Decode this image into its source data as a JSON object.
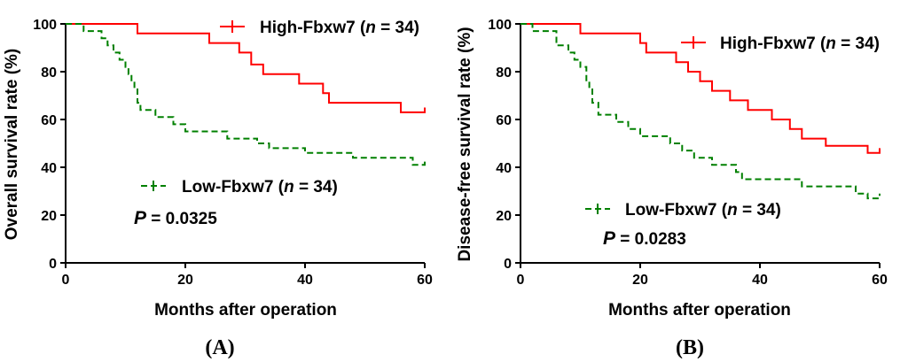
{
  "chart_data": [
    {
      "type": "line",
      "panel": "A",
      "panel_label": "(A)",
      "xlabel": "Months after operation",
      "ylabel": "Overall survival rate (%)",
      "xlim": [
        0,
        60
      ],
      "ylim": [
        0,
        100
      ],
      "xticks": [
        0,
        20,
        40,
        60
      ],
      "yticks": [
        0,
        20,
        40,
        60,
        80,
        100
      ],
      "series": [
        {
          "name": "High-Fbxw7",
          "n_label": "n",
          "n_value": "= 34)",
          "color": "#ff0000",
          "style": "solid",
          "points": [
            [
              0,
              100
            ],
            [
              12,
              100
            ],
            [
              12,
              96
            ],
            [
              24,
              96
            ],
            [
              24,
              92
            ],
            [
              29,
              92
            ],
            [
              29,
              88
            ],
            [
              31,
              88
            ],
            [
              31,
              83
            ],
            [
              33,
              83
            ],
            [
              33,
              79
            ],
            [
              39,
              79
            ],
            [
              39,
              75
            ],
            [
              43,
              75
            ],
            [
              43,
              71
            ],
            [
              44,
              71
            ],
            [
              44,
              67
            ],
            [
              56,
              67
            ],
            [
              56,
              63
            ],
            [
              60,
              63
            ],
            [
              60,
              65
            ]
          ]
        },
        {
          "name": "Low-Fbxw7",
          "n_label": "n",
          "n_value": "= 34)",
          "color": "#008000",
          "style": "dashed",
          "points": [
            [
              0,
              100
            ],
            [
              3,
              100
            ],
            [
              3,
              97
            ],
            [
              6,
              97
            ],
            [
              6,
              94
            ],
            [
              7,
              94
            ],
            [
              7,
              91
            ],
            [
              8,
              91
            ],
            [
              8,
              88
            ],
            [
              9,
              88
            ],
            [
              9,
              85
            ],
            [
              10,
              85
            ],
            [
              10,
              82
            ],
            [
              10.5,
              82
            ],
            [
              10.5,
              79
            ],
            [
              11,
              79
            ],
            [
              11,
              76
            ],
            [
              11.5,
              76
            ],
            [
              11.5,
              73
            ],
            [
              12,
              73
            ],
            [
              12,
              67
            ],
            [
              12.5,
              67
            ],
            [
              12.5,
              64
            ],
            [
              15,
              64
            ],
            [
              15,
              61
            ],
            [
              18,
              61
            ],
            [
              18,
              58
            ],
            [
              20,
              58
            ],
            [
              20,
              55
            ],
            [
              27,
              55
            ],
            [
              27,
              52
            ],
            [
              32,
              52
            ],
            [
              32,
              50
            ],
            [
              34,
              50
            ],
            [
              34,
              48
            ],
            [
              40,
              48
            ],
            [
              40,
              46
            ],
            [
              48,
              46
            ],
            [
              48,
              44
            ],
            [
              58,
              44
            ],
            [
              58,
              41
            ],
            [
              60,
              41
            ],
            [
              60,
              43
            ]
          ]
        }
      ],
      "p_label": "P",
      "p_value": "= 0.0325"
    },
    {
      "type": "line",
      "panel": "B",
      "panel_label": "(B)",
      "xlabel": "Months after operation",
      "ylabel": "Disease-free survival rate (%)",
      "xlim": [
        0,
        60
      ],
      "ylim": [
        0,
        100
      ],
      "xticks": [
        0,
        20,
        40,
        60
      ],
      "yticks": [
        0,
        20,
        40,
        60,
        80,
        100
      ],
      "series": [
        {
          "name": "High-Fbxw7",
          "n_label": "n",
          "n_value": "= 34)",
          "color": "#ff0000",
          "style": "solid",
          "points": [
            [
              0,
              100
            ],
            [
              10,
              100
            ],
            [
              10,
              96
            ],
            [
              20,
              96
            ],
            [
              20,
              92
            ],
            [
              21,
              92
            ],
            [
              21,
              88
            ],
            [
              26,
              88
            ],
            [
              26,
              84
            ],
            [
              28,
              84
            ],
            [
              28,
              80
            ],
            [
              30,
              80
            ],
            [
              30,
              76
            ],
            [
              32,
              76
            ],
            [
              32,
              72
            ],
            [
              35,
              72
            ],
            [
              35,
              68
            ],
            [
              38,
              68
            ],
            [
              38,
              64
            ],
            [
              42,
              64
            ],
            [
              42,
              60
            ],
            [
              45,
              60
            ],
            [
              45,
              56
            ],
            [
              47,
              56
            ],
            [
              47,
              52
            ],
            [
              51,
              52
            ],
            [
              51,
              49
            ],
            [
              58,
              49
            ],
            [
              58,
              46
            ],
            [
              60,
              46
            ],
            [
              60,
              48
            ]
          ]
        },
        {
          "name": "Low-Fbxw7",
          "n_label": "n",
          "n_value": "= 34)",
          "color": "#008000",
          "style": "dashed",
          "points": [
            [
              0,
              100
            ],
            [
              2,
              100
            ],
            [
              2,
              97
            ],
            [
              6,
              97
            ],
            [
              6,
              91
            ],
            [
              8,
              91
            ],
            [
              8,
              88
            ],
            [
              9,
              88
            ],
            [
              9,
              85
            ],
            [
              10,
              85
            ],
            [
              10,
              82
            ],
            [
              11,
              82
            ],
            [
              11,
              76
            ],
            [
              11.5,
              76
            ],
            [
              11.5,
              73
            ],
            [
              12,
              73
            ],
            [
              12,
              67
            ],
            [
              13,
              67
            ],
            [
              13,
              62
            ],
            [
              16,
              62
            ],
            [
              16,
              59
            ],
            [
              18,
              59
            ],
            [
              18,
              56
            ],
            [
              20,
              56
            ],
            [
              20,
              53
            ],
            [
              25,
              53
            ],
            [
              25,
              50
            ],
            [
              27,
              50
            ],
            [
              27,
              47
            ],
            [
              29,
              47
            ],
            [
              29,
              44
            ],
            [
              32,
              44
            ],
            [
              32,
              41
            ],
            [
              36,
              41
            ],
            [
              36,
              38
            ],
            [
              37,
              38
            ],
            [
              37,
              35
            ],
            [
              47,
              35
            ],
            [
              47,
              32
            ],
            [
              56,
              32
            ],
            [
              56,
              29
            ],
            [
              58,
              29
            ],
            [
              58,
              27
            ],
            [
              60,
              27
            ],
            [
              60,
              29
            ]
          ]
        }
      ],
      "p_label": "P",
      "p_value": "= 0.0283"
    }
  ]
}
